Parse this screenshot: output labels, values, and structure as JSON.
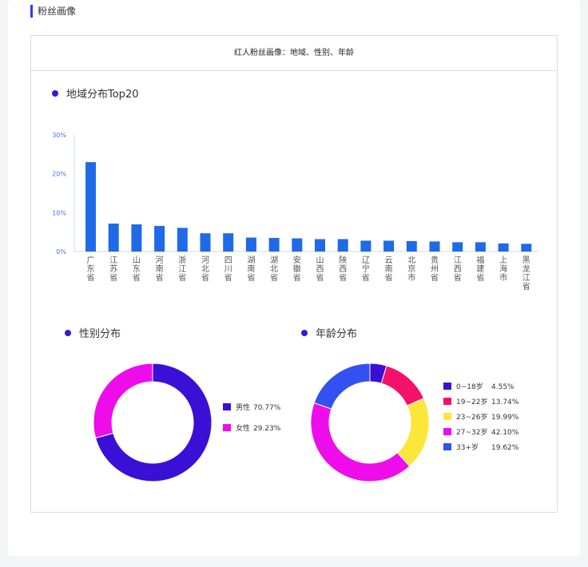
{
  "section": {
    "title": "粉丝画像"
  },
  "card": {
    "title": "红人粉丝画像：地域、性别、年龄"
  },
  "chart_data": [
    {
      "type": "bar",
      "title": "地域分布Top20",
      "yticks": [
        "0%",
        "10%",
        "20%",
        "30%"
      ],
      "ylim": [
        0,
        30
      ],
      "grid": false,
      "color": "#1f6ae6",
      "categories": [
        "广东省",
        "江苏省",
        "山东省",
        "河南省",
        "浙江省",
        "河北省",
        "四川省",
        "湖南省",
        "湖北省",
        "安徽省",
        "山西省",
        "陕西省",
        "辽宁省",
        "云南省",
        "北京市",
        "贵州省",
        "江西省",
        "福建省",
        "上海市",
        "黑龙江省"
      ],
      "values": [
        23.0,
        7.2,
        7.0,
        6.6,
        6.1,
        4.7,
        4.7,
        3.6,
        3.5,
        3.4,
        3.2,
        3.2,
        2.8,
        2.8,
        2.7,
        2.6,
        2.4,
        2.4,
        2.1,
        2.0
      ]
    },
    {
      "type": "pie",
      "title": "性别分布",
      "legend": "right",
      "slices": [
        {
          "label": "男性",
          "value": 70.77,
          "display": "70.77%",
          "color": "#3a0fd6"
        },
        {
          "label": "女性",
          "value": 29.23,
          "display": "29.23%",
          "color": "#ee0cea"
        }
      ]
    },
    {
      "type": "pie",
      "title": "年龄分布",
      "legend": "right",
      "slices": [
        {
          "label": "0~18岁",
          "value": 4.55,
          "display": "4.55%",
          "color": "#3a0fd6"
        },
        {
          "label": "19~22岁",
          "value": 13.74,
          "display": "13.74%",
          "color": "#f5106a"
        },
        {
          "label": "23~26岁",
          "value": 19.99,
          "display": "19.99%",
          "color": "#fce63a"
        },
        {
          "label": "27~32岁",
          "value": 42.1,
          "display": "42.10%",
          "color": "#ee0cea"
        },
        {
          "label": "33+岁",
          "value": 19.62,
          "display": "19.62%",
          "color": "#3350f0"
        }
      ]
    }
  ]
}
